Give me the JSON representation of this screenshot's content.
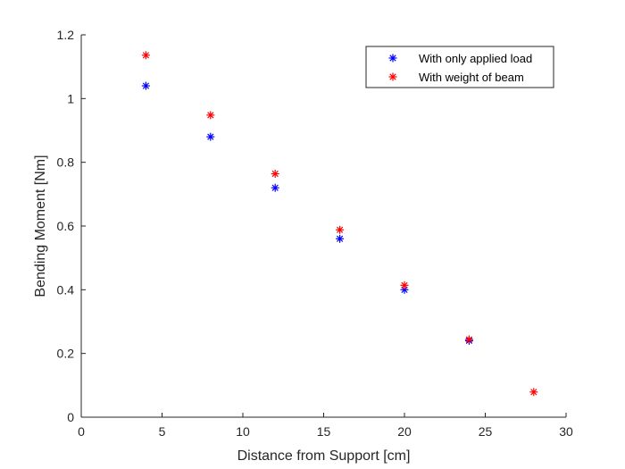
{
  "chart_data": {
    "type": "scatter",
    "title": "",
    "xlabel": "Distance from Support [cm]",
    "ylabel": "Bending Moment [Nm]",
    "xlim": [
      0,
      30
    ],
    "ylim": [
      0,
      1.2
    ],
    "xticks": [
      0,
      5,
      10,
      15,
      20,
      25,
      30
    ],
    "xtick_labels": [
      "0",
      "5",
      "10",
      "15",
      "20",
      "25",
      "30"
    ],
    "yticks": [
      0,
      0.2,
      0.4,
      0.6,
      0.8,
      1.0,
      1.2
    ],
    "ytick_labels": [
      "0",
      "0.2",
      "0.4",
      "0.6",
      "0.8",
      "1",
      "1.2"
    ],
    "grid": false,
    "legend_position": "top-right",
    "marker": "*",
    "series": [
      {
        "name": "With only applied load",
        "color": "#0000ff",
        "x": [
          4,
          8,
          12,
          16,
          20,
          24
        ],
        "y": [
          1.04,
          0.88,
          0.72,
          0.56,
          0.4,
          0.24
        ]
      },
      {
        "name": "With weight of beam",
        "color": "#ff0000",
        "x": [
          4,
          8,
          12,
          16,
          20,
          24,
          28
        ],
        "y": [
          1.136,
          0.948,
          0.764,
          0.588,
          0.414,
          0.244,
          0.079
        ]
      }
    ]
  }
}
